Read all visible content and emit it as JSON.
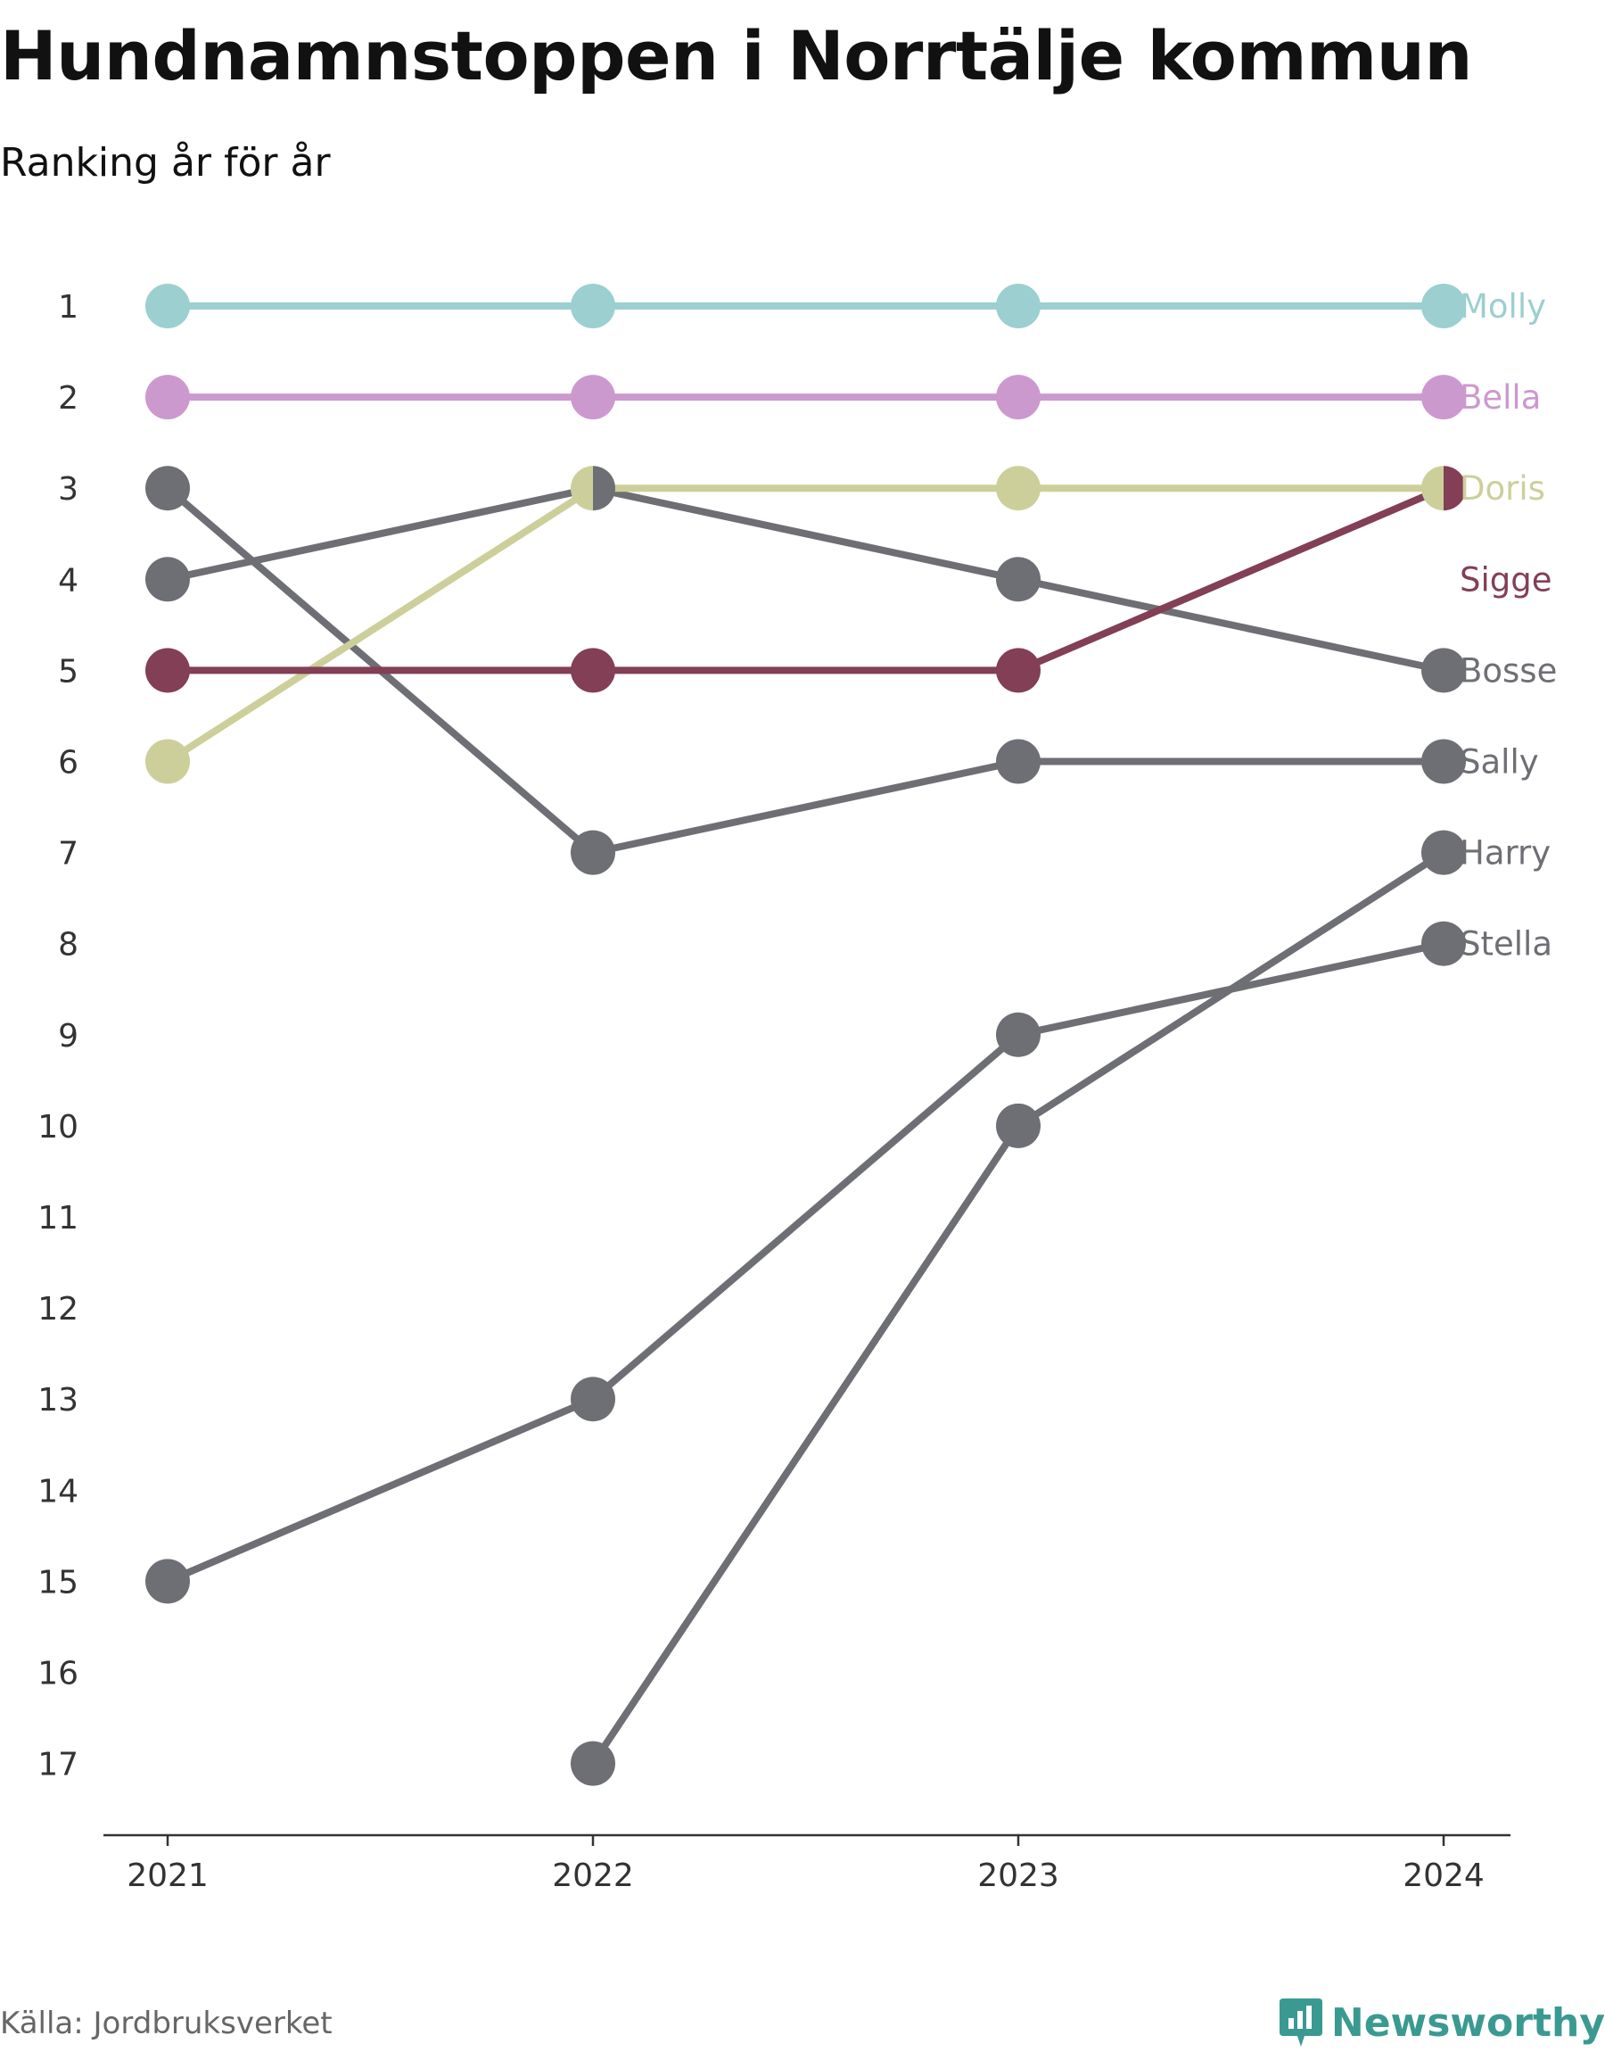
{
  "title": "Hundnamnstoppen i Norrtälje kommun",
  "subtitle": "Ranking år för år",
  "source": "Källa: Jordbruksverket",
  "brand": {
    "name": "Newsworthy",
    "icon": "newsworthy-logo-icon",
    "color": "#3a9a91"
  },
  "chart_data": {
    "type": "line",
    "chart_style": "bump chart (ranking)",
    "x": [
      "2021",
      "2022",
      "2023",
      "2024"
    ],
    "y_ticks": [
      "1",
      "2",
      "3",
      "4",
      "5",
      "6",
      "7",
      "8",
      "9",
      "10",
      "11",
      "12",
      "13",
      "14",
      "15",
      "16",
      "17"
    ],
    "ylim": [
      1,
      17
    ],
    "y_inverted": true,
    "grid": false,
    "series": [
      {
        "name": "Molly",
        "color": "#9ccfcf",
        "values": [
          1,
          1,
          1,
          1
        ]
      },
      {
        "name": "Bella",
        "color": "#cc99cf",
        "values": [
          2,
          2,
          2,
          2
        ]
      },
      {
        "name": "Doris",
        "color": "#cdcf9a",
        "values": [
          6,
          3,
          3,
          3
        ]
      },
      {
        "name": "Sigge",
        "color": "#823f55",
        "values": [
          5,
          5,
          5,
          3
        ]
      },
      {
        "name": "Bosse",
        "color": "#6e6e75",
        "values": [
          4,
          3,
          4,
          5
        ]
      },
      {
        "name": "Sally",
        "color": "#6e6e75",
        "values": [
          3,
          7,
          6,
          6
        ]
      },
      {
        "name": "Harry",
        "color": "#6e6e75",
        "values": [
          null,
          17,
          10,
          7
        ]
      },
      {
        "name": "Stella",
        "color": "#6e6e75",
        "values": [
          15,
          13,
          9,
          8
        ]
      }
    ]
  }
}
